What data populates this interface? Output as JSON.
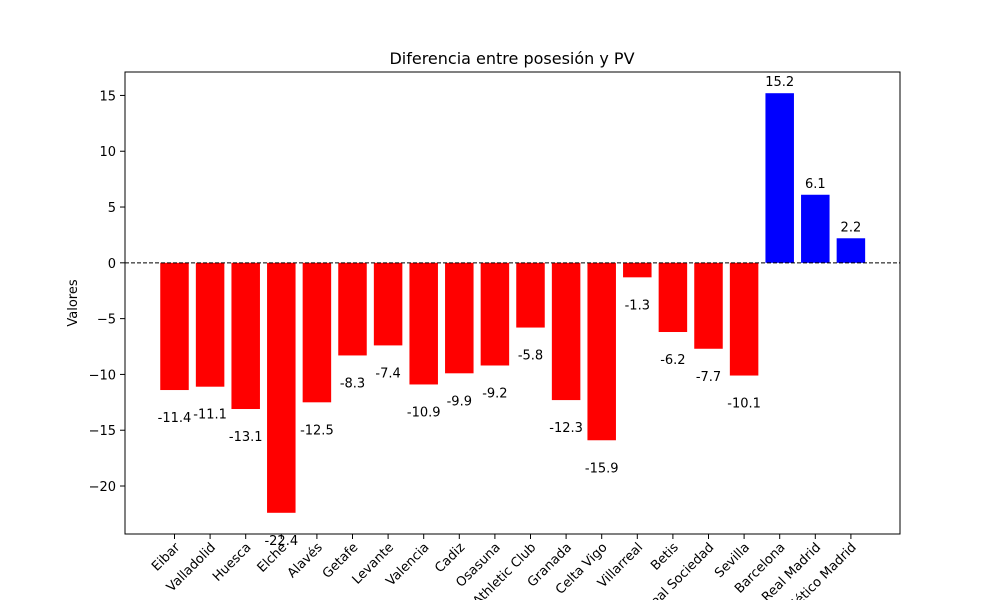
{
  "chart_data": {
    "type": "bar",
    "title": "Diferencia entre posesión y PV",
    "xlabel": "",
    "ylabel": "Valores",
    "ylim": [
      -24.3,
      17.1
    ],
    "yticks": [
      15,
      10,
      5,
      0,
      -5,
      -10,
      -15,
      -20
    ],
    "ytick_labels": [
      "15",
      "10",
      "5",
      "0",
      "−5",
      "−10",
      "−15",
      "−20"
    ],
    "categories": [
      "Eibar",
      "Valladolid",
      "Huesca",
      "Elche",
      "Alavés",
      "Getafe",
      "Levante",
      "Valencia",
      "Cadiz",
      "Osasuna",
      "Athletic Club",
      "Granada",
      "Celta Vigo",
      "Villarreal",
      "Betis",
      "Real Sociedad",
      "Sevilla",
      "Barcelona",
      "Real Madrid",
      "Atlético Madrid"
    ],
    "values": [
      -11.4,
      -11.1,
      -13.1,
      -22.4,
      -12.5,
      -8.3,
      -7.4,
      -10.9,
      -9.9,
      -9.2,
      -5.8,
      -12.3,
      -15.9,
      -1.3,
      -6.2,
      -7.7,
      -10.1,
      15.2,
      6.1,
      2.2
    ],
    "value_labels": [
      "-11.4",
      "-11.1",
      "-13.1",
      "-22.4",
      "-12.5",
      "-8.3",
      "-7.4",
      "-10.9",
      "-9.9",
      "-9.2",
      "-5.8",
      "-12.3",
      "-15.9",
      "-1.3",
      "-6.2",
      "-7.7",
      "-10.1",
      "15.2",
      "6.1",
      "2.2"
    ],
    "colors": {
      "negative": "#ff0000",
      "positive": "#0000ff"
    },
    "reference_line": {
      "value": 0,
      "style": "dashed",
      "color": "#000000"
    },
    "grid": false
  }
}
